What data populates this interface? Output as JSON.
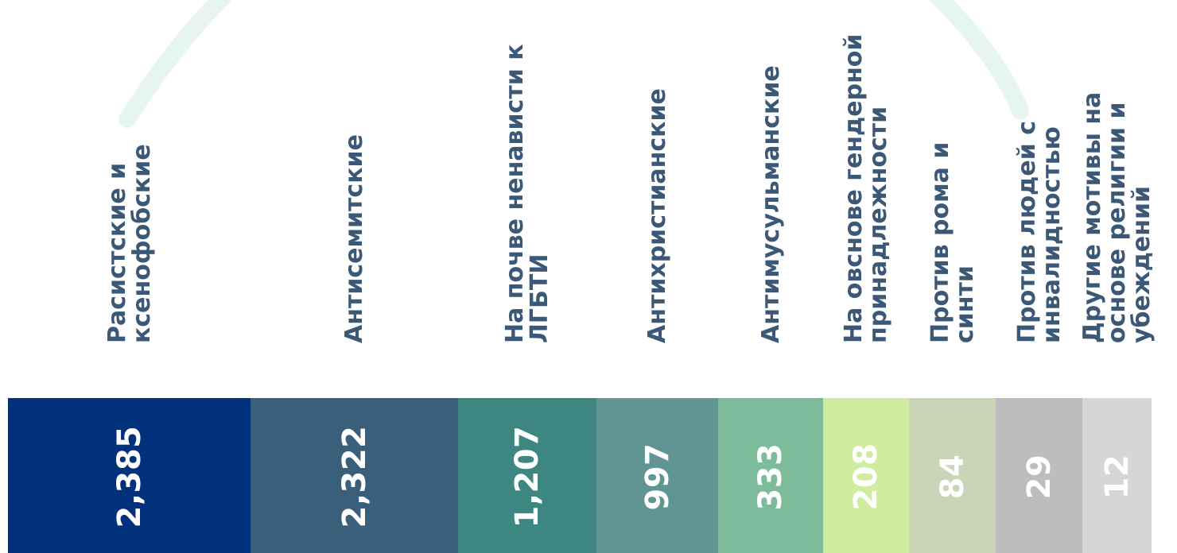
{
  "chart_data": {
    "type": "bar",
    "orientation": "stacked-horizontal",
    "categories": [
      "Расистские и ксенофобские",
      "Антисемитские",
      "На почве ненависти к ЛГБТИ",
      "Антихристианские",
      "Антимусульманские",
      "На овснове гендерной принадлежности",
      "Против рома и синти",
      "Против людей с инвалидностью",
      "Другие мотивы на основе религии и убеждений"
    ],
    "category_lines": [
      [
        "Расистские и",
        "ксенофобские"
      ],
      [
        "Антисемитские"
      ],
      [
        "На почве ненависти к",
        "ЛГБТИ"
      ],
      [
        "Антихристианские"
      ],
      [
        "Антимусульманские"
      ],
      [
        "На овснове гендерной",
        "принадлежности"
      ],
      [
        "Против рома и",
        "синти"
      ],
      [
        "Против людей с",
        "инвалидностью"
      ],
      [
        "Другие мотивы на",
        "основе религии и",
        "убеждений"
      ]
    ],
    "values": [
      2385,
      2322,
      1207,
      997,
      333,
      208,
      84,
      29,
      12
    ],
    "value_labels": [
      "2,385",
      "2,322",
      "1,207",
      "997",
      "333",
      "208",
      "84",
      "29",
      "12"
    ],
    "colors": [
      "#00317a",
      "#3a5f7a",
      "#3d8682",
      "#609593",
      "#7cbc9a",
      "#cfeca0",
      "#c9d5b6",
      "#bdbdbd",
      "#d6d6d6"
    ]
  }
}
